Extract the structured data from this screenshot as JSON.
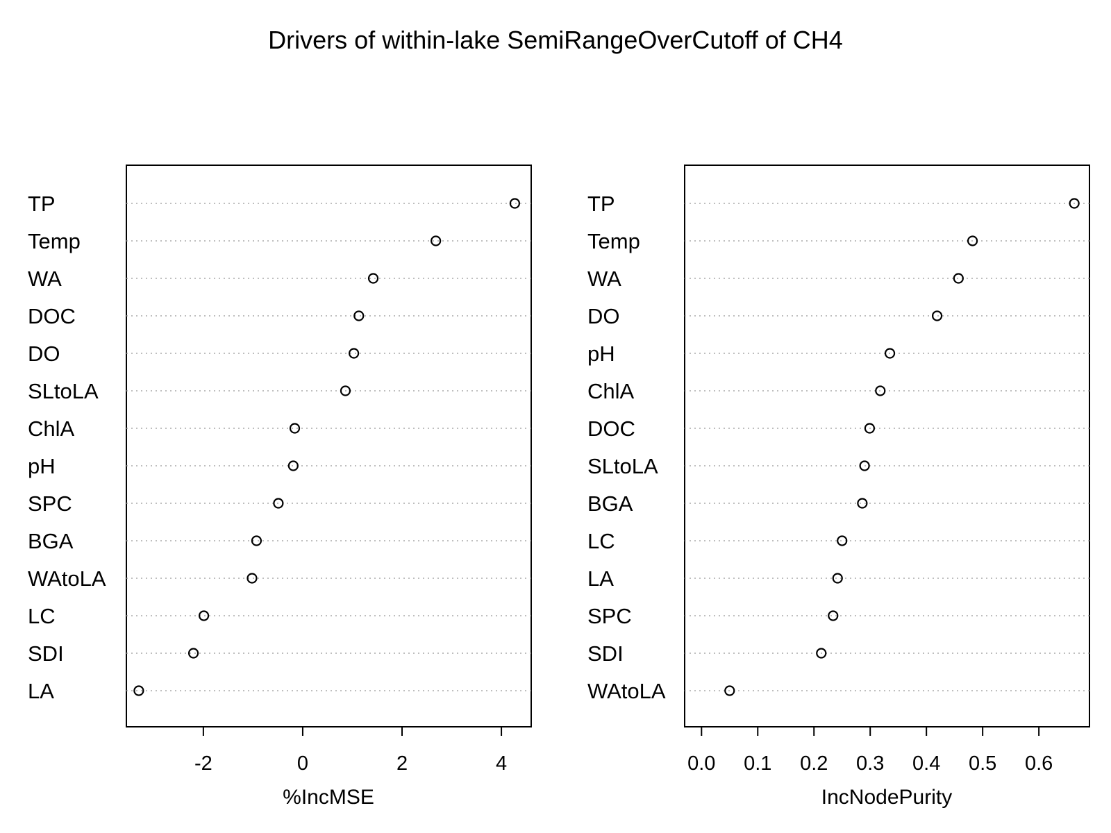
{
  "title": "Drivers of within-lake SemiRangeOverCutoff of CH4",
  "chart_data": [
    {
      "type": "scatter",
      "xlabel": "%IncMSE",
      "ylabel": "",
      "xlim": [
        -3.55,
        4.6
      ],
      "xticks": [
        -2,
        0,
        2,
        4
      ],
      "tick_labels": [
        "-2",
        "0",
        "2",
        "4"
      ],
      "grid": true,
      "categories": [
        "TP",
        "Temp",
        "WA",
        "DOC",
        "DO",
        "SLtoLA",
        "ChlA",
        "pH",
        "SPC",
        "BGA",
        "WAtoLA",
        "LC",
        "SDI",
        "LA"
      ],
      "values": [
        4.27,
        2.68,
        1.42,
        1.13,
        1.03,
        0.86,
        -0.16,
        -0.19,
        -0.49,
        -0.93,
        -1.02,
        -1.99,
        -2.2,
        -3.3
      ]
    },
    {
      "type": "scatter",
      "xlabel": "IncNodePurity",
      "ylabel": "",
      "xlim": [
        -0.03,
        0.69
      ],
      "xticks": [
        0.0,
        0.1,
        0.2,
        0.3,
        0.4,
        0.5,
        0.6
      ],
      "tick_labels": [
        "0.0",
        "0.1",
        "0.2",
        "0.3",
        "0.4",
        "0.5",
        "0.6"
      ],
      "grid": true,
      "categories": [
        "TP",
        "Temp",
        "WA",
        "DO",
        "pH",
        "ChlA",
        "DOC",
        "SLtoLA",
        "BGA",
        "LC",
        "LA",
        "SPC",
        "SDI",
        "WAtoLA"
      ],
      "values": [
        0.663,
        0.482,
        0.457,
        0.419,
        0.335,
        0.318,
        0.299,
        0.29,
        0.286,
        0.25,
        0.242,
        0.234,
        0.213,
        0.05
      ]
    }
  ]
}
